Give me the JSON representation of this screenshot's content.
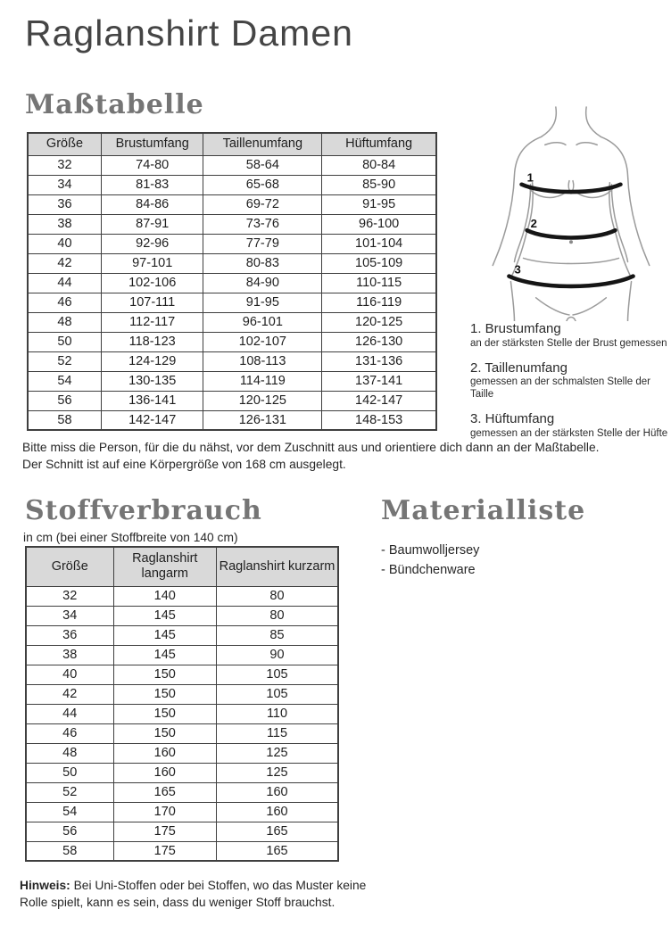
{
  "page": {
    "title": "Raglanshirt Damen"
  },
  "colors": {
    "heading_gray": "#757575",
    "title_gray": "#454545",
    "table_header_bg": "#d9d9d9",
    "table_border": "#3f3f3f",
    "body_text": "#262626",
    "figure_band": "#151515",
    "figure_outline": "#9b9b9b"
  },
  "mass_section": {
    "heading": "Maßtabelle",
    "table": {
      "headers": [
        "Größe",
        "Brustumfang",
        "Taillenumfang",
        "Hüftumfang"
      ],
      "rows": [
        [
          "32",
          "74-80",
          "58-64",
          "80-84"
        ],
        [
          "34",
          "81-83",
          "65-68",
          "85-90"
        ],
        [
          "36",
          "84-86",
          "69-72",
          "91-95"
        ],
        [
          "38",
          "87-91",
          "73-76",
          "96-100"
        ],
        [
          "40",
          "92-96",
          "77-79",
          "101-104"
        ],
        [
          "42",
          "97-101",
          "80-83",
          "105-109"
        ],
        [
          "44",
          "102-106",
          "84-90",
          "110-115"
        ],
        [
          "46",
          "107-111",
          "91-95",
          "116-119"
        ],
        [
          "48",
          "112-117",
          "96-101",
          "120-125"
        ],
        [
          "50",
          "118-123",
          "102-107",
          "126-130"
        ],
        [
          "52",
          "124-129",
          "108-113",
          "131-136"
        ],
        [
          "54",
          "130-135",
          "114-119",
          "137-141"
        ],
        [
          "56",
          "136-141",
          "120-125",
          "142-147"
        ],
        [
          "58",
          "142-147",
          "126-131",
          "148-153"
        ]
      ]
    },
    "figure": {
      "markers": [
        "1",
        "2",
        "3"
      ]
    },
    "annotations": [
      {
        "label": "1. Brustumfang",
        "desc": "an der stärksten Stelle der Brust gemessen"
      },
      {
        "label": "2. Taillenumfang",
        "desc": "gemessen an der schmalsten Stelle der Taille"
      },
      {
        "label": "3. Hüftumfang",
        "desc": "gemessen an der stärksten Stelle der Hüfte"
      }
    ],
    "notes": [
      "Bitte miss die Person, für die du nähst, vor dem Zuschnitt aus und orientiere dich dann an der Maßtabelle.",
      "Der Schnitt ist auf eine Körpergröße von 168 cm ausgelegt."
    ]
  },
  "stoff_section": {
    "heading": "Stoffverbrauch",
    "subtitle": "in cm (bei einer Stoffbreite von 140 cm)",
    "table": {
      "headers": [
        "Größe",
        "Raglanshirt langarm",
        "Raglanshirt kurzarm"
      ],
      "rows": [
        [
          "32",
          "140",
          "80"
        ],
        [
          "34",
          "145",
          "80"
        ],
        [
          "36",
          "145",
          "85"
        ],
        [
          "38",
          "145",
          "90"
        ],
        [
          "40",
          "150",
          "105"
        ],
        [
          "42",
          "150",
          "105"
        ],
        [
          "44",
          "150",
          "110"
        ],
        [
          "46",
          "150",
          "115"
        ],
        [
          "48",
          "160",
          "125"
        ],
        [
          "50",
          "160",
          "125"
        ],
        [
          "52",
          "165",
          "160"
        ],
        [
          "54",
          "170",
          "160"
        ],
        [
          "56",
          "175",
          "165"
        ],
        [
          "58",
          "175",
          "165"
        ]
      ]
    }
  },
  "material_section": {
    "heading": "Materialliste",
    "items": [
      "- Baumwolljersey",
      "- Bündchenware"
    ]
  },
  "hinweis": {
    "label": "Hinweis:",
    "text": "Bei Uni-Stoffen oder bei Stoffen, wo das Muster keine Rolle spielt, kann es sein, dass du weniger Stoff brauchst."
  }
}
